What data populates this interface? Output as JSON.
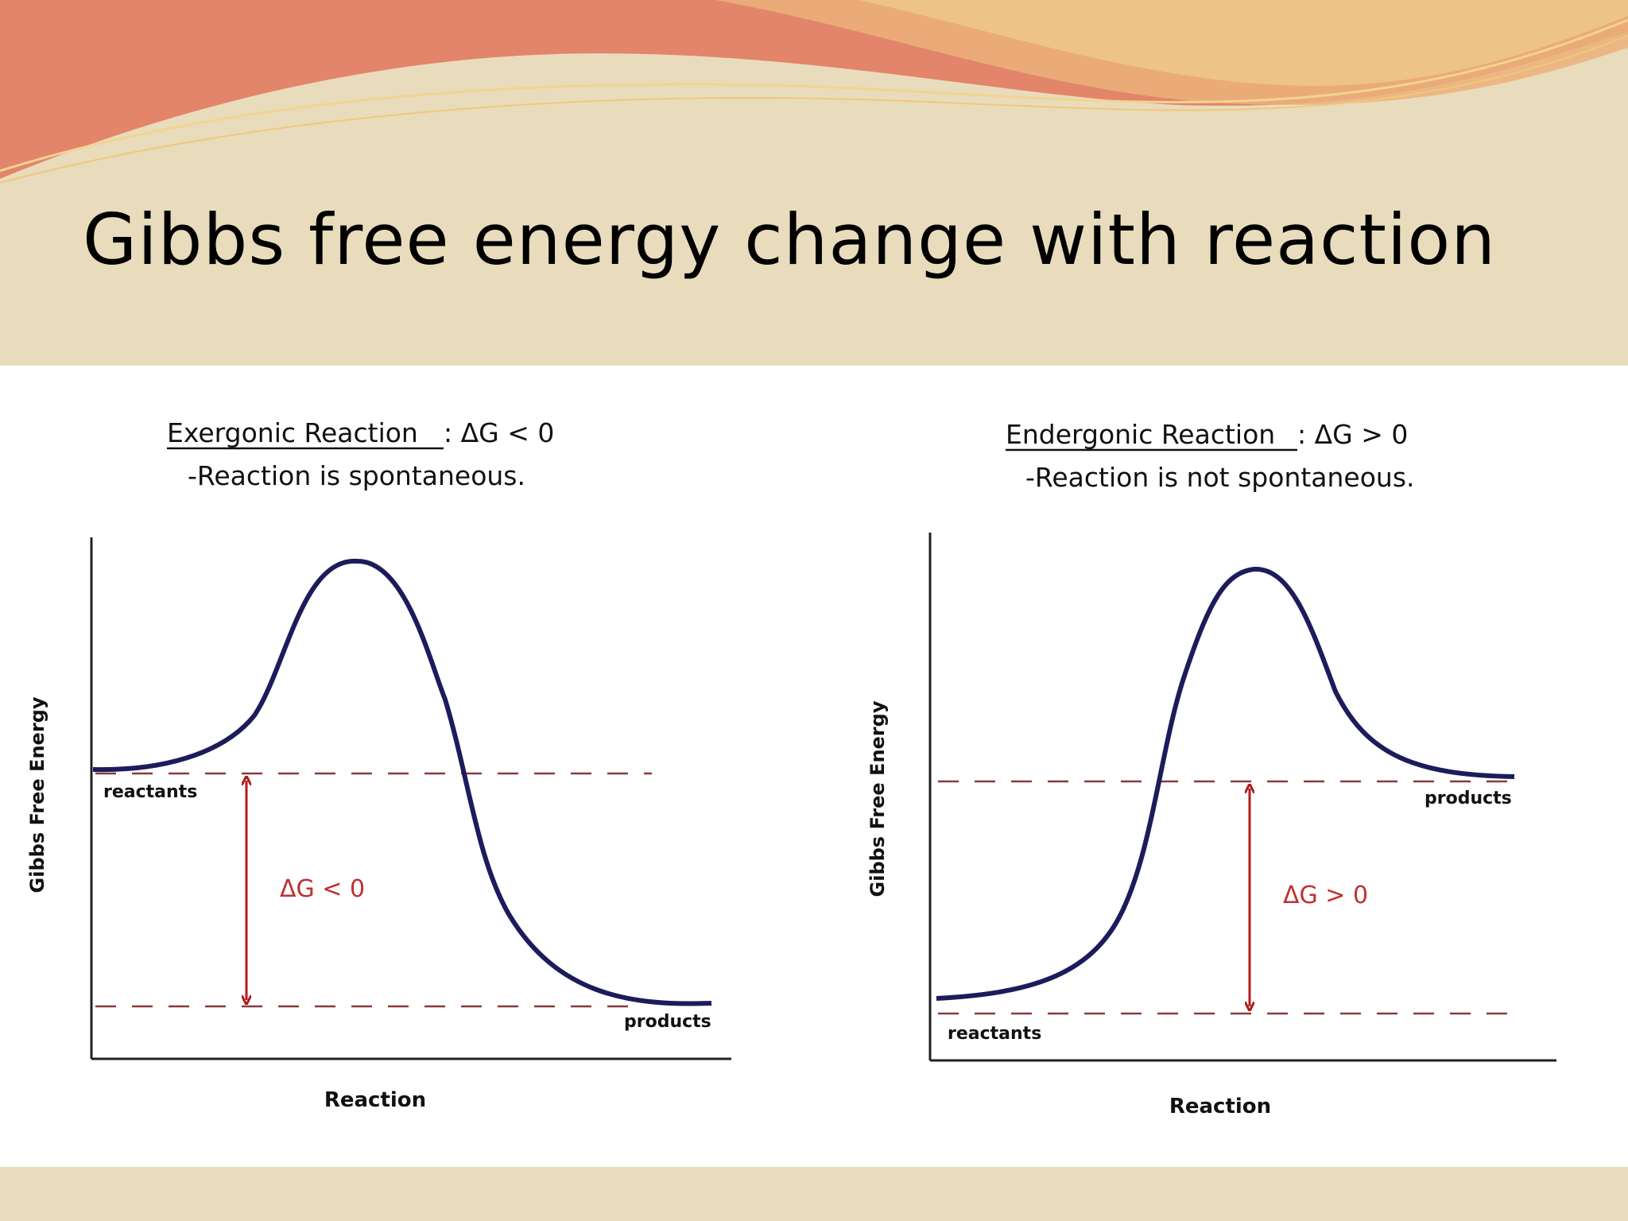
{
  "slide": {
    "title": "Gibbs  free energy change with reaction"
  },
  "colors": {
    "background": "#e9dcbc",
    "header_orange": "#e3856a",
    "header_gold": "#e8b070",
    "curve": "#1c1c5c",
    "dashed_line": "#8a3a3a",
    "arrow": "#b01c1c",
    "content_bg": "#ffffff"
  },
  "diagrams": [
    {
      "heading_label": "Exergonic Reaction",
      "heading_condition": ": ΔG < 0",
      "subheading": "-Reaction is spontaneous.",
      "y_axis_label": "Gibbs Free Energy",
      "x_axis_label": "Reaction",
      "reactants_label": "reactants",
      "products_label": "products",
      "delta_label": "ΔG < 0"
    },
    {
      "heading_label": "Endergonic Reaction",
      "heading_condition": ": ΔG > 0",
      "subheading": "-Reaction is not spontaneous.",
      "y_axis_label": "Gibbs Free Energy",
      "x_axis_label": "Reaction",
      "reactants_label": "reactants",
      "products_label": "products",
      "delta_label": "ΔG > 0"
    }
  ]
}
